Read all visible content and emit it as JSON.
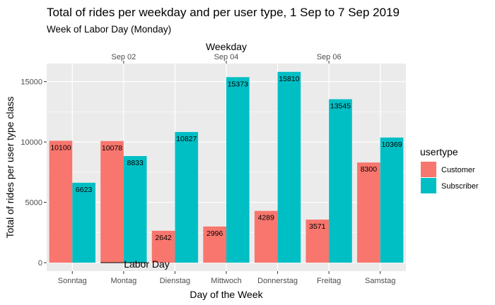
{
  "chart_data": {
    "type": "bar",
    "title": "Total of rides per weekday and per user type, 1 Sep to 7 Sep 2019",
    "subtitle": "Week of Labor Day (Monday)",
    "xlabel": "Day of the Week",
    "ylabel": "Total of rides per user type class",
    "secondary_xlabel": "Weekday",
    "categories": [
      "Sonntag",
      "Montag",
      "Dienstag",
      "Mittwoch",
      "Donnerstag",
      "Freitag",
      "Samstag"
    ],
    "series": [
      {
        "name": "Customer",
        "color": "#F8766D",
        "values": [
          10100,
          10078,
          2642,
          2996,
          4289,
          3571,
          8300
        ]
      },
      {
        "name": "Subscriber",
        "color": "#00BFC4",
        "values": [
          6623,
          8833,
          10827,
          15373,
          15810,
          13545,
          10369
        ]
      }
    ],
    "ylim": [
      -700,
      16500
    ],
    "yticks": [
      0,
      5000,
      10000,
      15000
    ],
    "secondary_xticks": [
      {
        "label": "Sep 02",
        "category": "Montag"
      },
      {
        "label": "Sep 04",
        "category": "Mittwoch"
      },
      {
        "label": "Sep 06",
        "category": "Freitag"
      }
    ],
    "annotation": {
      "text": "Labor Day",
      "category": "Montag"
    },
    "legend_title": "usertype",
    "legend_position": "right",
    "grid": true,
    "panel_color": "#EBEBEB"
  }
}
